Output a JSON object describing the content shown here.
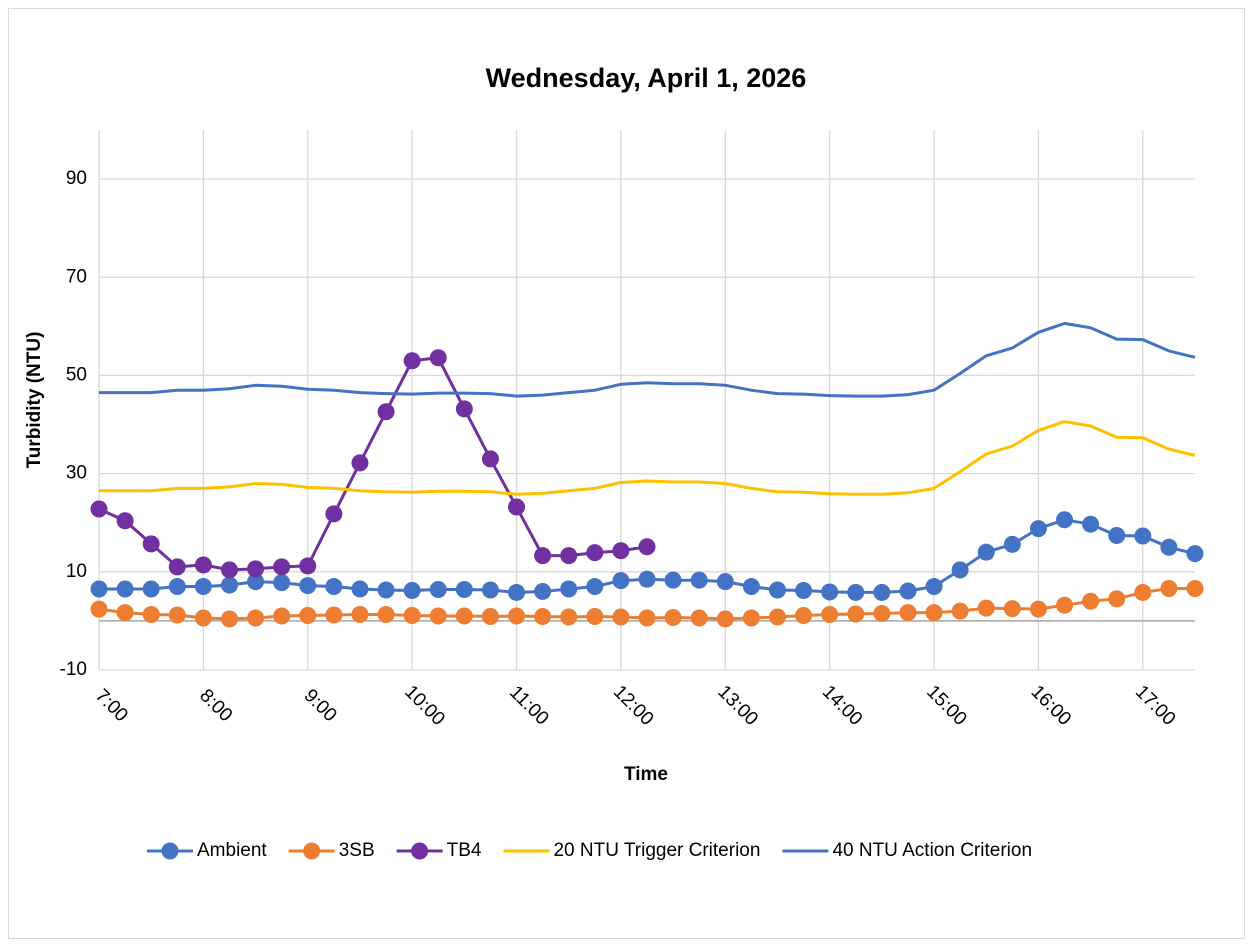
{
  "chart_data": {
    "type": "line",
    "title": "Wednesday, April 1, 2026",
    "x_label": "Time",
    "y_label": "Turbidity (NTU)",
    "x": [
      7,
      7.25,
      7.5,
      7.75,
      8,
      8.25,
      8.5,
      8.75,
      9,
      9.25,
      9.5,
      9.75,
      10,
      10.25,
      10.5,
      10.75,
      11,
      11.25,
      11.5,
      11.75,
      12,
      12.25,
      12.5,
      12.75,
      13,
      13.25,
      13.5,
      13.75,
      14,
      14.25,
      14.5,
      14.75,
      15,
      15.25,
      15.5,
      15.75,
      16,
      16.25,
      16.5,
      16.75,
      17,
      17.25,
      17.5
    ],
    "xlim": [
      7,
      17.5
    ],
    "xticks": [
      {
        "value": 7,
        "label": "7:00"
      },
      {
        "value": 8,
        "label": "8:00"
      },
      {
        "value": 9,
        "label": "9:00"
      },
      {
        "value": 10,
        "label": "10:00"
      },
      {
        "value": 11,
        "label": "11:00"
      },
      {
        "value": 12,
        "label": "12:00"
      },
      {
        "value": 13,
        "label": "13:00"
      },
      {
        "value": 14,
        "label": "14:00"
      },
      {
        "value": 15,
        "label": "15:00"
      },
      {
        "value": 16,
        "label": "16:00"
      },
      {
        "value": 17,
        "label": "17:00"
      }
    ],
    "ylim": [
      -10,
      100
    ],
    "yticks": [
      -10,
      10,
      30,
      50,
      70,
      90
    ],
    "grid": true,
    "legend": "bottom",
    "series": [
      {
        "name": "Ambient",
        "color": "#4472C4",
        "marker": true,
        "values": [
          6.5,
          6.5,
          6.5,
          7,
          7,
          7.3,
          8,
          7.8,
          7.2,
          7,
          6.5,
          6.3,
          6.2,
          6.4,
          6.4,
          6.3,
          5.8,
          6,
          6.5,
          7,
          8.2,
          8.5,
          8.3,
          8.3,
          8,
          7,
          6.3,
          6.2,
          5.9,
          5.8,
          5.8,
          6.1,
          7,
          10.4,
          14,
          15.6,
          18.8,
          20.6,
          19.7,
          17.4,
          17.3,
          15,
          13.7
        ]
      },
      {
        "name": "3SB",
        "color": "#ED7D31",
        "marker": true,
        "values": [
          2.4,
          1.7,
          1.3,
          1.2,
          0.6,
          0.4,
          0.6,
          1,
          1.1,
          1.2,
          1.3,
          1.3,
          1.1,
          1,
          1,
          0.9,
          1,
          0.9,
          0.8,
          0.9,
          0.8,
          0.6,
          0.7,
          0.6,
          0.4,
          0.6,
          0.8,
          1.1,
          1.3,
          1.4,
          1.5,
          1.7,
          1.7,
          2,
          2.6,
          2.5,
          2.4,
          3.2,
          4,
          4.5,
          5.8,
          6.6,
          6.6
        ]
      },
      {
        "name": "TB4",
        "color": "#7030A0",
        "marker": true,
        "values": [
          22.8,
          20.4,
          15.7,
          11,
          11.4,
          10.4,
          10.6,
          11,
          11.2,
          21.8,
          32.2,
          42.6,
          53,
          53.6,
          43.2,
          33,
          23.2,
          13.3,
          13.3,
          13.9,
          14.3,
          15.1,
          null,
          null,
          null,
          null,
          null,
          null,
          null,
          null,
          null,
          null,
          null,
          null,
          null,
          null,
          null,
          null,
          null,
          null,
          null,
          null,
          null
        ]
      },
      {
        "name": "20 NTU Trigger Criterion",
        "color": "#FFC000",
        "marker": false,
        "values": [
          26.5,
          26.5,
          26.5,
          27,
          27,
          27.3,
          28,
          27.8,
          27.2,
          27,
          26.5,
          26.3,
          26.2,
          26.4,
          26.4,
          26.3,
          25.8,
          26,
          26.5,
          27,
          28.2,
          28.5,
          28.3,
          28.3,
          28,
          27,
          26.3,
          26.2,
          25.9,
          25.8,
          25.8,
          26.1,
          27,
          30.4,
          34,
          35.6,
          38.8,
          40.6,
          39.7,
          37.4,
          37.3,
          35,
          33.7
        ]
      },
      {
        "name": "40 NTU Action Criterion",
        "color": "#4472C4",
        "marker": false,
        "values": [
          46.5,
          46.5,
          46.5,
          47,
          47,
          47.3,
          48,
          47.8,
          47.2,
          47,
          46.5,
          46.3,
          46.2,
          46.4,
          46.4,
          46.3,
          45.8,
          46,
          46.5,
          47,
          48.2,
          48.5,
          48.3,
          48.3,
          48,
          47,
          46.3,
          46.2,
          45.9,
          45.8,
          45.8,
          46.1,
          47,
          50.4,
          54,
          55.6,
          58.8,
          60.6,
          59.7,
          57.4,
          57.3,
          55,
          53.7
        ]
      }
    ]
  }
}
